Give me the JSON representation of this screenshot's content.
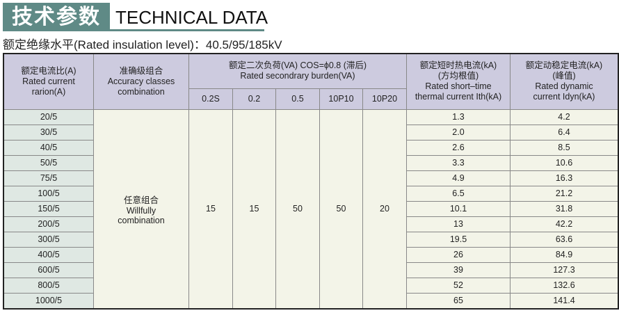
{
  "title": {
    "cn": "技术参数",
    "en": "TECHNICAL DATA"
  },
  "subtitle": "额定绝缘水平(Rated insulation level)：40.5/95/185kV",
  "header": {
    "ratio": [
      "额定电流比(A)",
      "Rated current",
      "rarion(A)"
    ],
    "accuracy": [
      "准确级组合",
      "Accuracy classes",
      "combination"
    ],
    "burden": [
      "额定二次负荷(VA) COS=ϕ0.8 (滞后)",
      "Rated secondrary burden(VA)"
    ],
    "burden_cols": [
      "0.2S",
      "0.2",
      "0.5",
      "10P10",
      "10P20"
    ],
    "thermal": [
      "额定短时热电流(kA)",
      "(方均根值)",
      "Rated short–time",
      "thermal current Ith(kA)"
    ],
    "dynamic": [
      "额定动稳定电流(kA)",
      "(峰值)",
      "Rated dynamic",
      "current Idyn(kA)"
    ]
  },
  "accuracy_value": [
    "任意组合",
    "Willfully",
    "combination"
  ],
  "burden_values": [
    "15",
    "15",
    "50",
    "50",
    "20"
  ],
  "rows": [
    [
      "20/5",
      "1.3",
      "4.2"
    ],
    [
      "30/5",
      "2.0",
      "6.4"
    ],
    [
      "40/5",
      "2.6",
      "8.5"
    ],
    [
      "50/5",
      "3.3",
      "10.6"
    ],
    [
      "75/5",
      "4.9",
      "16.3"
    ],
    [
      "100/5",
      "6.5",
      "21.2"
    ],
    [
      "150/5",
      "10.1",
      "31.8"
    ],
    [
      "200/5",
      "13",
      "42.2"
    ],
    [
      "300/5",
      "19.5",
      "63.6"
    ],
    [
      "400/5",
      "26",
      "84.9"
    ],
    [
      "600/5",
      "39",
      "127.3"
    ],
    [
      "800/5",
      "52",
      "132.6"
    ],
    [
      "1000/5",
      "65",
      "141.4"
    ]
  ]
}
